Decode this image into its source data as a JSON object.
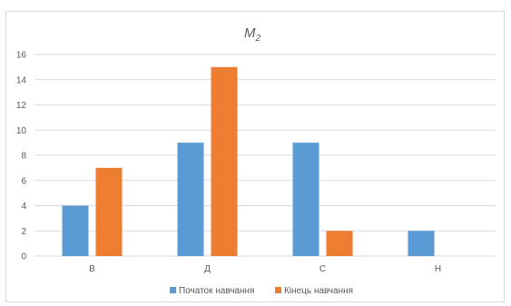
{
  "chart_data": {
    "type": "bar",
    "title": {
      "main": "M",
      "subscript": "2"
    },
    "categories": [
      "В",
      "Д",
      "С",
      "Н"
    ],
    "series": [
      {
        "name": "Початок навчання",
        "values": [
          4,
          9,
          9,
          2
        ],
        "color": "#5b9bd5"
      },
      {
        "name": "Кінець навчання",
        "values": [
          7,
          15,
          2,
          0
        ],
        "color": "#ed7d31"
      }
    ],
    "ylim": [
      0,
      16
    ],
    "yticks": [
      "0",
      "2",
      "4",
      "6",
      "8",
      "10",
      "12",
      "14",
      "16"
    ],
    "grid": true,
    "legend_position": "bottom",
    "xlabel": "",
    "ylabel": ""
  }
}
